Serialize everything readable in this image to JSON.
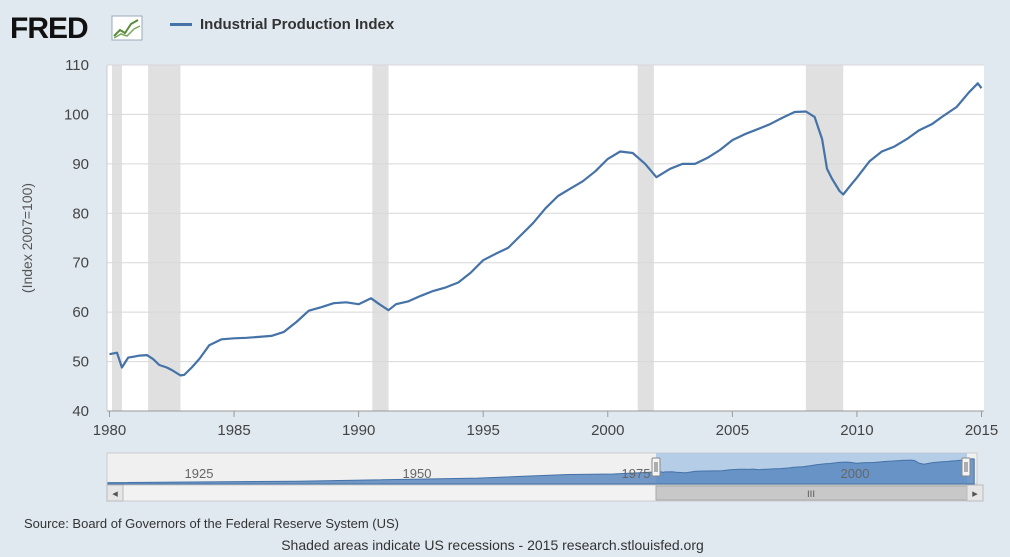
{
  "header": {
    "logo_text": "FRED",
    "legend_label": "Industrial Production Index"
  },
  "colors": {
    "series": "#4572a7",
    "recession": "#e0e0e0",
    "background": "#e1e9f0",
    "plot_background": "#ffffff",
    "grid": "#d8d8d8"
  },
  "chart_data": {
    "type": "line",
    "title": "",
    "xlabel": "",
    "ylabel": "(Index 2007=100)",
    "xlim": [
      1979.9,
      2015.1
    ],
    "ylim": [
      40,
      110
    ],
    "y_ticks": [
      40,
      50,
      60,
      70,
      80,
      90,
      100,
      110
    ],
    "x_ticks": [
      1980,
      1985,
      1990,
      1995,
      2000,
      2005,
      2010,
      2015
    ],
    "x_tick_labels": [
      "1980",
      "1985",
      "1990",
      "1995",
      "2000",
      "2005",
      "2010",
      "2015"
    ],
    "y_tick_labels": [
      "40",
      "50",
      "60",
      "70",
      "80",
      "90",
      "100",
      "110"
    ],
    "grid": true,
    "legend_position": "top",
    "recessions": [
      [
        1980.1,
        1980.5
      ],
      [
        1981.55,
        1982.85
      ],
      [
        1990.55,
        1991.2
      ],
      [
        2001.2,
        2001.85
      ],
      [
        2007.95,
        2009.45
      ]
    ],
    "series": [
      {
        "name": "Industrial Production Index",
        "x": [
          1980.0,
          1980.3,
          1980.5,
          1980.75,
          1981.0,
          1981.2,
          1981.5,
          1981.75,
          1982.0,
          1982.3,
          1982.5,
          1982.85,
          1983.0,
          1983.3,
          1983.6,
          1984.0,
          1984.5,
          1985.0,
          1985.5,
          1986.0,
          1986.5,
          1987.0,
          1987.5,
          1988.0,
          1988.5,
          1989.0,
          1989.5,
          1990.0,
          1990.5,
          1990.8,
          1991.2,
          1991.5,
          1992.0,
          1992.5,
          1993.0,
          1993.5,
          1994.0,
          1994.5,
          1995.0,
          1995.5,
          1996.0,
          1996.5,
          1997.0,
          1997.5,
          1998.0,
          1998.5,
          1999.0,
          1999.5,
          2000.0,
          2000.5,
          2001.0,
          2001.5,
          2001.95,
          2002.5,
          2003.0,
          2003.5,
          2004.0,
          2004.5,
          2005.0,
          2005.5,
          2006.0,
          2006.5,
          2007.0,
          2007.5,
          2007.95,
          2008.3,
          2008.6,
          2008.8,
          2009.0,
          2009.3,
          2009.45,
          2009.8,
          2010.0,
          2010.5,
          2011.0,
          2011.5,
          2012.0,
          2012.5,
          2013.0,
          2013.5,
          2014.0,
          2014.5,
          2014.85,
          2015.0
        ],
        "values": [
          51.5,
          51.8,
          48.8,
          50.8,
          51.0,
          51.2,
          51.3,
          50.5,
          49.3,
          48.8,
          48.3,
          47.2,
          47.3,
          48.8,
          50.5,
          53.3,
          54.5,
          54.7,
          54.8,
          55.0,
          55.2,
          56.0,
          58.0,
          60.3,
          61.0,
          61.8,
          62.0,
          61.6,
          62.8,
          61.7,
          60.4,
          61.6,
          62.2,
          63.3,
          64.3,
          65.0,
          66.0,
          68.0,
          70.5,
          71.8,
          73.0,
          75.5,
          78.0,
          81.0,
          83.5,
          85.0,
          86.5,
          88.5,
          91.0,
          92.5,
          92.2,
          90.0,
          87.3,
          89.0,
          90.0,
          90.0,
          91.2,
          92.8,
          94.8,
          96.0,
          97.0,
          98.0,
          99.3,
          100.5,
          100.6,
          99.5,
          95.0,
          89.0,
          87.0,
          84.5,
          83.8,
          86.0,
          87.2,
          90.5,
          92.5,
          93.5,
          95.0,
          96.8,
          98.0,
          99.8,
          101.5,
          104.5,
          106.3,
          105.3
        ]
      }
    ]
  },
  "navigator": {
    "labels": [
      "1925",
      "1950",
      "1975",
      "2000"
    ],
    "scroll_left_arrow": "◂",
    "scroll_right_arrow": "▸",
    "scroll_grip": "III"
  },
  "footer": {
    "source": "Source: Board of Governors of the Federal Reserve System (US)",
    "note": "Shaded areas indicate US recessions - 2015 research.stlouisfed.org"
  }
}
